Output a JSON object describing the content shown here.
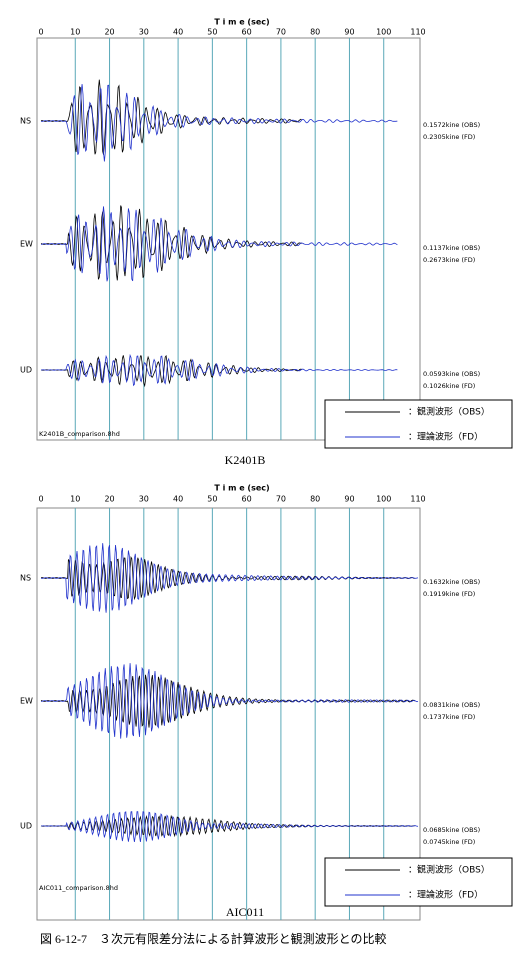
{
  "panels": [
    {
      "axis_title": "T i m e (sec)",
      "ticks": [
        "0",
        "10",
        "20",
        "30",
        "40",
        "50",
        "60",
        "70",
        "80",
        "90",
        "100",
        "110"
      ],
      "traces": [
        {
          "label": "NS",
          "obs": "0.1572kine (OBS)",
          "fd": "0.2305kine (FD)"
        },
        {
          "label": "EW",
          "obs": "0.1137kine (OBS)",
          "fd": "0.2673kine (FD)"
        },
        {
          "label": "UD",
          "obs": "0.0593kine (OBS)",
          "fd": "0.1026kine (FD)"
        }
      ],
      "legend": {
        "obs": "：観測波形（OBS）",
        "fd": "：理論波形（FD）"
      },
      "file": "K2401B_comparison.8hd",
      "caption": "K2401B"
    },
    {
      "axis_title": "T i m e (sec)",
      "ticks": [
        "0",
        "10",
        "20",
        "30",
        "40",
        "50",
        "60",
        "70",
        "80",
        "90",
        "100",
        "110"
      ],
      "traces": [
        {
          "label": "NS",
          "obs": "0.1632kine (OBS)",
          "fd": "0.1919kine (FD)"
        },
        {
          "label": "EW",
          "obs": "0.0831kine (OBS)",
          "fd": "0.1737kine (FD)"
        },
        {
          "label": "UD",
          "obs": "0.0685kine (OBS)",
          "fd": "0.0745kine (FD)"
        }
      ],
      "legend": {
        "obs": "：観測波形（OBS）",
        "fd": "：理論波形（FD）"
      },
      "file": "AIC011_comparison.8hd",
      "caption": "AIC011"
    }
  ],
  "figure_caption": "図 6-12-7　３次元有限差分法による計算波形と観測波形との比較"
}
